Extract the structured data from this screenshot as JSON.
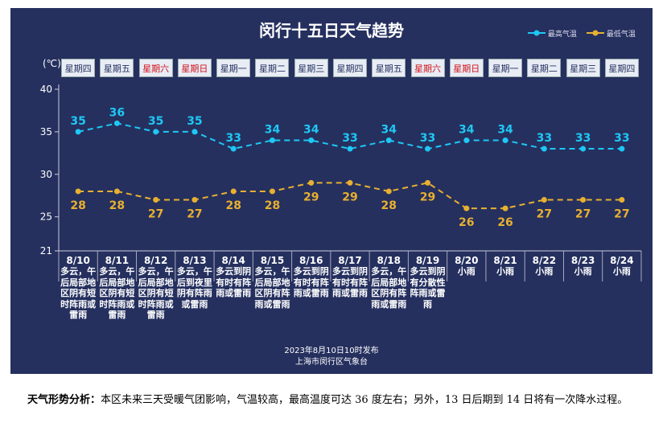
{
  "chart_data": {
    "type": "line",
    "title": "闵行十五日天气趋势",
    "ylabel": "(℃)",
    "ylim": [
      21,
      40
    ],
    "yticks": [
      21,
      25,
      30,
      35,
      40
    ],
    "legend_position": "top-right",
    "categories": [
      "8/10",
      "8/11",
      "8/12",
      "8/13",
      "8/14",
      "8/15",
      "8/16",
      "8/17",
      "8/18",
      "8/19",
      "8/20",
      "8/21",
      "8/22",
      "8/23",
      "8/24"
    ],
    "weekdays": [
      "星期四",
      "星期五",
      "星期六",
      "星期日",
      "星期一",
      "星期二",
      "星期三",
      "星期四",
      "星期五",
      "星期六",
      "星期日",
      "星期一",
      "星期二",
      "星期三",
      "星期四"
    ],
    "weather": [
      "多云，午后局部地区阴有短时阵雨或雷雨",
      "多云，午后局部地区阴有短时阵雨或雷雨",
      "多云，午后局部地区阴有短时阵雨或雷雨",
      "多云，午后到夜里阴有阵雨或雷雨",
      "多云到阴有时有阵雨或雷雨",
      "多云，午后局部地区阴有阵雨或雷雨",
      "多云到阴有时有阵雨或雷雨",
      "多云到阴有时有阵雨或雷雨",
      "多云，午后局部地区阴有阵雨或雷雨",
      "多云到阴有分散性阵雨或雷雨",
      "小雨",
      "小雨",
      "小雨",
      "小雨",
      "小雨"
    ],
    "series": [
      {
        "name": "最高气温",
        "color": "#1ec8f5",
        "values": [
          35,
          36,
          35,
          35,
          33,
          34,
          34,
          33,
          34,
          33,
          34,
          34,
          33,
          33,
          33
        ]
      },
      {
        "name": "最低气温",
        "color": "#e8b030",
        "values": [
          28,
          28,
          27,
          27,
          28,
          28,
          29,
          29,
          28,
          29,
          26,
          26,
          27,
          27,
          27
        ]
      }
    ],
    "weekend_color": "#d0121b"
  },
  "publish": {
    "line1": "2023年8月10日10时发布",
    "line2": "上海市闵行区气象台"
  },
  "analysis": {
    "label": "天气形势分析：",
    "text": "本区未来三天受暖气团影响，气温较高，最高温度可达 36 度左右；另外，13 日后期到 14 日将有一次降水过程。"
  }
}
